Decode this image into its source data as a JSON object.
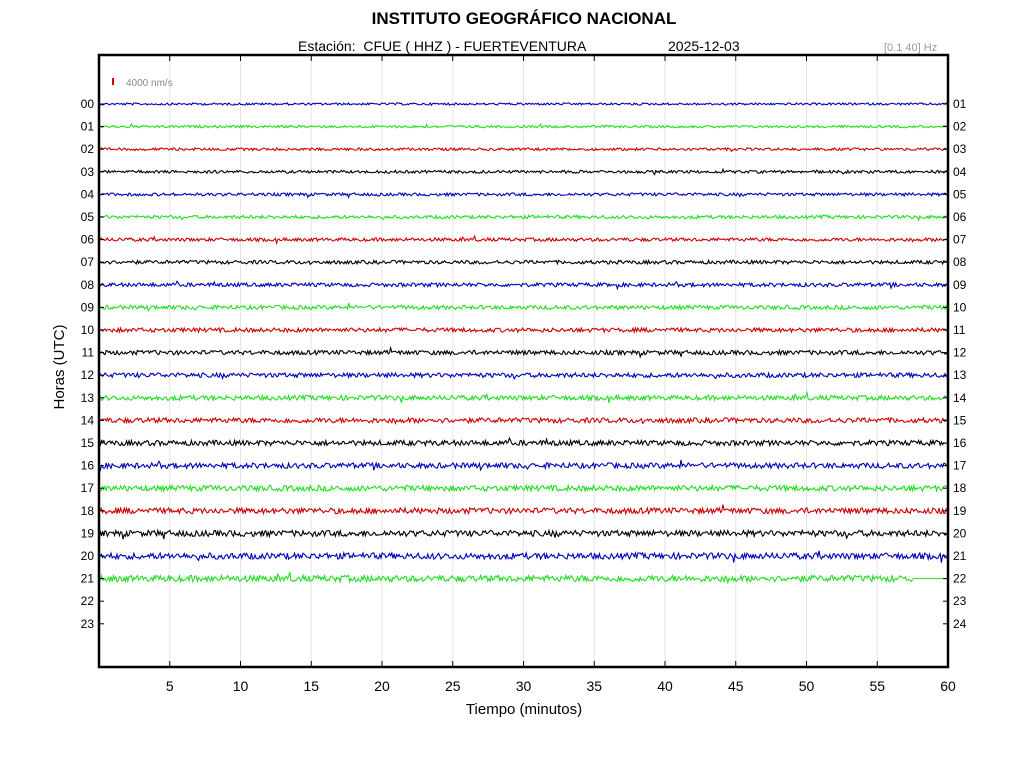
{
  "title": "INSTITUTO GEOGRÁFICO NACIONAL",
  "subtitle": "Estación:  CFUE ( HHZ ) - FUERTEVENTURA",
  "date": "2025-12-03",
  "filter": "[0.1 40] Hz",
  "chart_data": {
    "type": "line",
    "title": "INSTITUTO GEOGRÁFICO NACIONAL",
    "xlabel": "Tiempo (minutos)",
    "ylabel": "Horas (UTC)",
    "xlim": [
      0,
      60
    ],
    "x_ticks": [
      5,
      10,
      15,
      20,
      25,
      30,
      35,
      40,
      45,
      50,
      55,
      60
    ],
    "left_hour_labels": [
      "00",
      "01",
      "02",
      "03",
      "04",
      "05",
      "06",
      "07",
      "08",
      "09",
      "10",
      "11",
      "12",
      "13",
      "14",
      "15",
      "16",
      "17",
      "18",
      "19",
      "20",
      "21",
      "22",
      "23"
    ],
    "right_hour_labels": [
      "01",
      "02",
      "03",
      "04",
      "05",
      "06",
      "07",
      "08",
      "09",
      "10",
      "11",
      "12",
      "13",
      "14",
      "15",
      "16",
      "17",
      "18",
      "19",
      "20",
      "21",
      "22",
      "23",
      "24"
    ],
    "amplitude_scale": "4000 nm/s",
    "grid": true,
    "colors": [
      "#0000bb",
      "#22dd22",
      "#cc0000",
      "#000000"
    ],
    "series": [
      {
        "hour": "00",
        "color": "#0000bb",
        "end_minute": 60
      },
      {
        "hour": "01",
        "color": "#22dd22",
        "end_minute": 60
      },
      {
        "hour": "02",
        "color": "#cc0000",
        "end_minute": 60
      },
      {
        "hour": "03",
        "color": "#000000",
        "end_minute": 60
      },
      {
        "hour": "04",
        "color": "#0000bb",
        "end_minute": 60
      },
      {
        "hour": "05",
        "color": "#22dd22",
        "end_minute": 60
      },
      {
        "hour": "06",
        "color": "#cc0000",
        "end_minute": 60
      },
      {
        "hour": "07",
        "color": "#000000",
        "end_minute": 60
      },
      {
        "hour": "08",
        "color": "#0000bb",
        "end_minute": 60
      },
      {
        "hour": "09",
        "color": "#22dd22",
        "end_minute": 60
      },
      {
        "hour": "10",
        "color": "#cc0000",
        "end_minute": 60
      },
      {
        "hour": "11",
        "color": "#000000",
        "end_minute": 60
      },
      {
        "hour": "12",
        "color": "#0000bb",
        "end_minute": 60
      },
      {
        "hour": "13",
        "color": "#22dd22",
        "end_minute": 60
      },
      {
        "hour": "14",
        "color": "#cc0000",
        "end_minute": 60
      },
      {
        "hour": "15",
        "color": "#000000",
        "end_minute": 60
      },
      {
        "hour": "16",
        "color": "#0000bb",
        "end_minute": 60
      },
      {
        "hour": "17",
        "color": "#22dd22",
        "end_minute": 60
      },
      {
        "hour": "18",
        "color": "#cc0000",
        "end_minute": 60
      },
      {
        "hour": "19",
        "color": "#000000",
        "end_minute": 60
      },
      {
        "hour": "20",
        "color": "#0000bb",
        "end_minute": 60
      },
      {
        "hour": "21",
        "color": "#22dd22",
        "end_minute": 57.5
      }
    ]
  }
}
